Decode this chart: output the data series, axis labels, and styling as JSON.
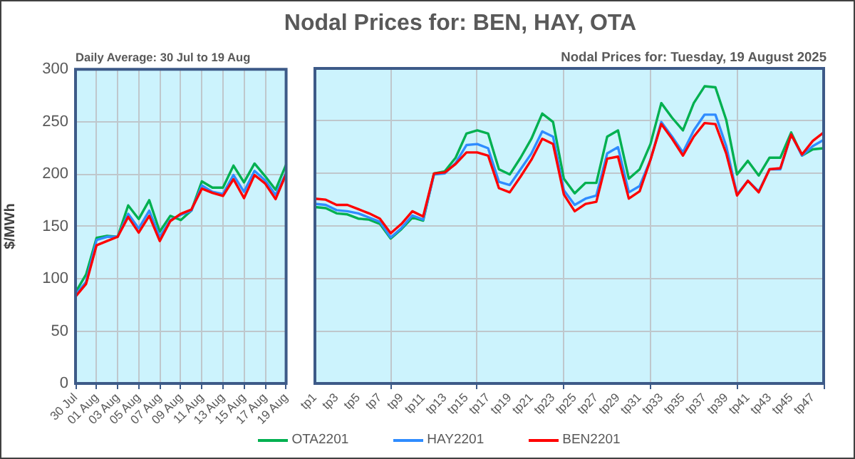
{
  "chart_data": [
    {
      "type": "line",
      "title": "Daily Average: 30 Jul to 19 Aug",
      "ylabel": "$/MWh",
      "categories": [
        "30 Jul",
        null,
        "01 Aug",
        null,
        "03 Aug",
        null,
        "05 Aug",
        null,
        "07 Aug",
        null,
        "09 Aug",
        null,
        "11 Aug",
        null,
        "13 Aug",
        null,
        "15 Aug",
        null,
        "17 Aug",
        null,
        "19 Aug"
      ],
      "series": [
        {
          "name": "OTA2201",
          "color": "#00b050",
          "values": [
            87,
            104,
            139,
            141,
            140,
            170,
            157,
            175,
            145,
            160,
            156,
            165,
            193,
            187,
            187,
            208,
            192,
            210,
            198,
            185,
            209
          ]
        },
        {
          "name": "HAY2201",
          "color": "#2f8cff",
          "values": [
            85,
            97,
            137,
            140,
            140,
            162,
            148,
            165,
            140,
            156,
            161,
            165,
            189,
            183,
            181,
            199,
            183,
            203,
            194,
            180,
            201
          ]
        },
        {
          "name": "BEN2201",
          "color": "#ff0000",
          "values": [
            83,
            95,
            132,
            136,
            140,
            159,
            144,
            160,
            136,
            155,
            162,
            166,
            186,
            182,
            179,
            195,
            177,
            199,
            191,
            176,
            200
          ]
        }
      ],
      "ylim": [
        0,
        300
      ],
      "yticks": [
        0,
        50,
        100,
        150,
        200,
        250,
        300
      ],
      "grid": true,
      "legend": "bottom",
      "marker": "none"
    },
    {
      "type": "line",
      "title": "Nodal Prices for: BEN, HAY, OTA",
      "subtitle": "Nodal Prices for: Tuesday, 19 August 2025",
      "categories": [
        "tp1",
        null,
        "tp3",
        null,
        "tp5",
        null,
        "tp7",
        null,
        "tp9",
        null,
        "tp11",
        null,
        "tp13",
        null,
        "tp15",
        null,
        "tp17",
        null,
        "tp19",
        null,
        "tp21",
        null,
        "tp23",
        null,
        "tp25",
        null,
        "tp27",
        null,
        "tp29",
        null,
        "tp31",
        null,
        "tp33",
        null,
        "tp35",
        null,
        "tp37",
        null,
        "tp39",
        null,
        "tp41",
        null,
        "tp43",
        null,
        "tp45",
        null,
        "tp47",
        null
      ],
      "series": [
        {
          "name": "OTA2201",
          "color": "#00b050",
          "values": [
            168,
            167,
            162,
            161,
            157,
            156,
            152,
            138,
            147,
            158,
            155,
            200,
            202,
            215,
            238,
            241,
            238,
            204,
            199,
            215,
            233,
            257,
            249,
            195,
            181,
            191,
            191,
            235,
            241,
            195,
            204,
            228,
            267,
            253,
            241,
            267,
            283,
            282,
            251,
            199,
            212,
            198,
            215,
            215,
            239,
            217,
            223,
            224
          ]
        },
        {
          "name": "HAY2201",
          "color": "#2f8cff",
          "values": [
            171,
            170,
            165,
            164,
            162,
            158,
            154,
            139,
            148,
            160,
            156,
            199,
            200,
            210,
            227,
            228,
            224,
            192,
            189,
            204,
            219,
            240,
            235,
            184,
            170,
            176,
            179,
            219,
            225,
            182,
            188,
            213,
            249,
            235,
            220,
            241,
            256,
            256,
            226,
            180,
            193,
            183,
            204,
            204,
            237,
            217,
            226,
            232
          ]
        },
        {
          "name": "BEN2201",
          "color": "#ff0000",
          "values": [
            176,
            175,
            170,
            170,
            166,
            162,
            157,
            143,
            152,
            164,
            159,
            200,
            201,
            209,
            220,
            220,
            217,
            186,
            182,
            197,
            213,
            233,
            228,
            180,
            164,
            171,
            173,
            214,
            216,
            176,
            183,
            213,
            247,
            233,
            217,
            235,
            248,
            247,
            219,
            179,
            193,
            182,
            204,
            205,
            237,
            218,
            231,
            239
          ]
        }
      ],
      "ylim": [
        0,
        300
      ],
      "yticks": [
        0,
        50,
        100,
        150,
        200,
        250,
        300
      ],
      "tick_labels": "x",
      "grid": true,
      "legend": "bottom",
      "marker": "none"
    }
  ]
}
